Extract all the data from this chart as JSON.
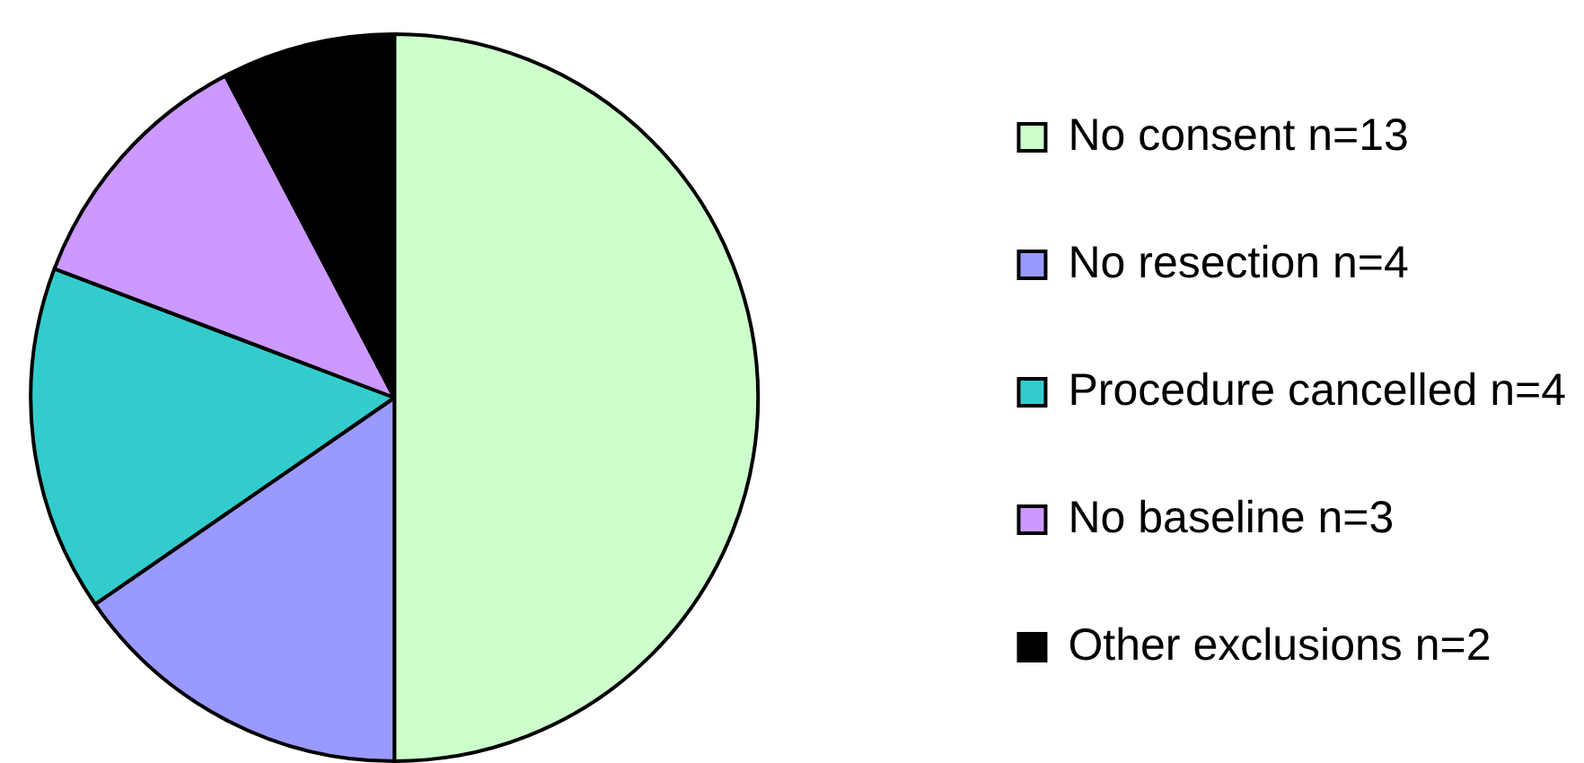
{
  "chart_data": {
    "type": "pie",
    "categories": [
      "No consent n=13",
      "No resection n=4",
      "Procedure cancelled n=4",
      "No baseline n=3",
      "Other exclusions n=2"
    ],
    "values": [
      13,
      4,
      4,
      3,
      2
    ],
    "colors": [
      "#ccffcc",
      "#9999ff",
      "#33cccc",
      "#cc99ff",
      "#000000"
    ],
    "legend": "right"
  }
}
